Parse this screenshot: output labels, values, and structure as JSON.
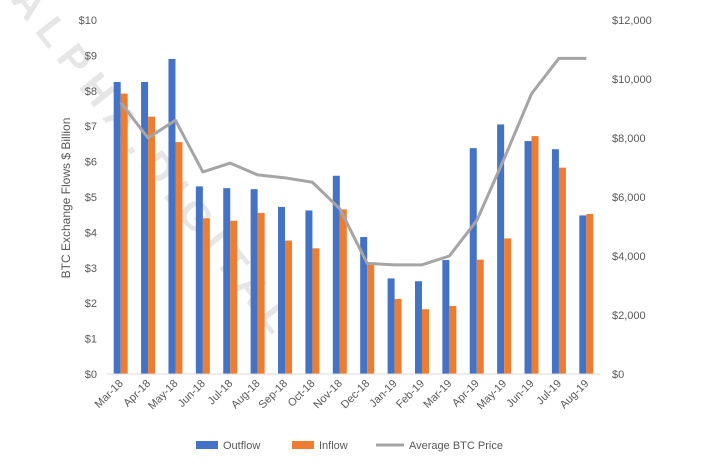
{
  "chart_data": {
    "type": "bar",
    "categories": [
      "Mar-18",
      "Apr-18",
      "May-18",
      "Jun-18",
      "Jul-18",
      "Aug-18",
      "Sep-18",
      "Oct-18",
      "Nov-18",
      "Dec-18",
      "Jan-19",
      "Feb-19",
      "Mar-19",
      "Apr-19",
      "May-19",
      "Jun-19",
      "Jul-19",
      "Aug-19"
    ],
    "series": [
      {
        "name": "Outflow",
        "type": "bar",
        "axis": "left",
        "color": "#4472C4",
        "values": [
          8.25,
          8.25,
          8.9,
          5.3,
          5.25,
          5.22,
          4.72,
          4.62,
          5.6,
          3.87,
          2.7,
          2.62,
          3.22,
          6.38,
          7.05,
          6.58,
          6.35,
          4.48
        ]
      },
      {
        "name": "Inflow",
        "type": "bar",
        "axis": "left",
        "color": "#ED7D31",
        "values": [
          7.92,
          7.27,
          6.55,
          4.4,
          4.33,
          4.55,
          3.77,
          3.55,
          4.65,
          3.1,
          2.12,
          1.83,
          1.92,
          3.23,
          3.83,
          6.72,
          5.83,
          4.52
        ]
      },
      {
        "name": "Average BTC Price",
        "type": "line",
        "axis": "right",
        "color": "#A5A5A5",
        "values": [
          9200,
          8000,
          8600,
          6850,
          7150,
          6750,
          6650,
          6500,
          5600,
          3750,
          3700,
          3700,
          4000,
          5200,
          7300,
          9500,
          10700,
          10700
        ]
      }
    ],
    "title": "",
    "ylabel": "BTC Exchange Flows $ Billion",
    "ylim": [
      0,
      10
    ],
    "y_ticks": [
      "$0",
      "$1",
      "$2",
      "$3",
      "$4",
      "$5",
      "$6",
      "$7",
      "$8",
      "$9",
      "$10"
    ],
    "y2lim": [
      0,
      12000
    ],
    "y2_ticks": [
      "$0",
      "$2,000",
      "$4,000",
      "$6,000",
      "$8,000",
      "$10,000",
      "$12,000"
    ],
    "grid": false,
    "legend": [
      "Outflow",
      "Inflow",
      "Average BTC Price"
    ],
    "legend_position": "bottom"
  },
  "watermark": "ALPHA.DIGITAL"
}
